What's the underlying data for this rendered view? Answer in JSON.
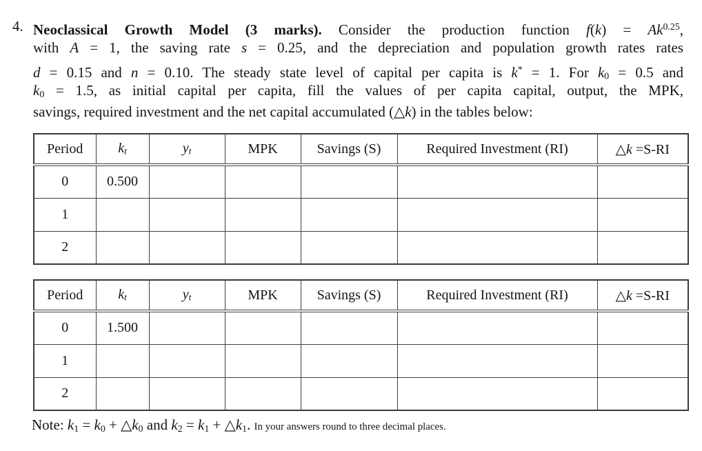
{
  "page": {
    "background_color": "#ffffff",
    "text_color": "#151515",
    "border_color": "#3f3f3f"
  },
  "problem": {
    "number": "4.",
    "intro_lines": [
      {
        "segments": [
          {
            "t": "Neoclassical Growth Model (3 marks).",
            "c": "b"
          },
          {
            "t": " Consider the production function "
          },
          {
            "t": "f",
            "c": "i"
          },
          {
            "t": "("
          },
          {
            "t": "k",
            "c": "i"
          },
          {
            "t": ") = "
          },
          {
            "t": "A",
            "c": "i"
          },
          {
            "t": "k",
            "c": "i"
          },
          {
            "t": "0.25",
            "c": "sup"
          },
          {
            "t": ","
          }
        ]
      },
      {
        "segments": [
          {
            "t": "with "
          },
          {
            "t": "A",
            "c": "i"
          },
          {
            "t": " = 1, the saving rate "
          },
          {
            "t": "s",
            "c": "i"
          },
          {
            "t": " = 0.25, and the depreciation and population growth rates rates"
          }
        ]
      },
      {
        "segments": [
          {
            "t": "d",
            "c": "i"
          },
          {
            "t": " = 0.15 and "
          },
          {
            "t": "n",
            "c": "i"
          },
          {
            "t": " = 0.10. The steady state level of capital per capita is "
          },
          {
            "t": "k",
            "c": "i"
          },
          {
            "t": "*",
            "c": "sup"
          },
          {
            "t": " = 1. For "
          },
          {
            "t": "k",
            "c": "i"
          },
          {
            "t": "0",
            "c": "sub"
          },
          {
            "t": " = 0.5 and"
          }
        ]
      },
      {
        "segments": [
          {
            "t": "k",
            "c": "i"
          },
          {
            "t": "0",
            "c": "sub"
          },
          {
            "t": " = 1.5, as initial capital per capita, fill the values of per capita capital, output, the MPK,"
          }
        ]
      },
      {
        "segments": [
          {
            "t": "savings, required investment and the net capital accumulated ("
          },
          {
            "t": "△"
          },
          {
            "t": "k",
            "c": "i"
          },
          {
            "t": ") in the tables below:"
          }
        ]
      }
    ]
  },
  "table_headers": [
    [
      {
        "t": "Period"
      }
    ],
    [
      {
        "t": "k",
        "c": "i"
      },
      {
        "t": "t",
        "c": "sub i"
      }
    ],
    [
      {
        "t": "y",
        "c": "i"
      },
      {
        "t": "t",
        "c": "sub i"
      }
    ],
    [
      {
        "t": "MPK"
      }
    ],
    [
      {
        "t": "Savings (S)"
      }
    ],
    [
      {
        "t": "Required Investment (RI)"
      }
    ],
    [
      {
        "t": "△"
      },
      {
        "t": "k",
        "c": "i"
      },
      {
        "t": " =S-RI"
      }
    ]
  ],
  "tables": [
    {
      "initial_capital": "0.5",
      "rows": [
        [
          "0",
          "0.500",
          "",
          "",
          "",
          "",
          ""
        ],
        [
          "1",
          "",
          "",
          "",
          "",
          "",
          ""
        ],
        [
          "2",
          "",
          "",
          "",
          "",
          "",
          ""
        ]
      ]
    },
    {
      "initial_capital": "1.5",
      "rows": [
        [
          "0",
          "1.500",
          "",
          "",
          "",
          "",
          ""
        ],
        [
          "1",
          "",
          "",
          "",
          "",
          "",
          ""
        ],
        [
          "2",
          "",
          "",
          "",
          "",
          "",
          ""
        ]
      ]
    }
  ],
  "note": {
    "segments": [
      {
        "t": "Note: "
      },
      {
        "t": "k",
        "c": "i"
      },
      {
        "t": "1",
        "c": "sub"
      },
      {
        "t": " = "
      },
      {
        "t": "k",
        "c": "i"
      },
      {
        "t": "0",
        "c": "sub"
      },
      {
        "t": " + "
      },
      {
        "t": "△"
      },
      {
        "t": "k",
        "c": "i"
      },
      {
        "t": "0",
        "c": "sub"
      },
      {
        "t": " and "
      },
      {
        "t": "k",
        "c": "i"
      },
      {
        "t": "2",
        "c": "sub"
      },
      {
        "t": " = "
      },
      {
        "t": "k",
        "c": "i"
      },
      {
        "t": "1",
        "c": "sub"
      },
      {
        "t": " + "
      },
      {
        "t": "△"
      },
      {
        "t": "k",
        "c": "i"
      },
      {
        "t": "1",
        "c": "sub"
      },
      {
        "t": ". "
      },
      {
        "t": "In your answers round to three decimal places.",
        "c": "small"
      }
    ]
  }
}
